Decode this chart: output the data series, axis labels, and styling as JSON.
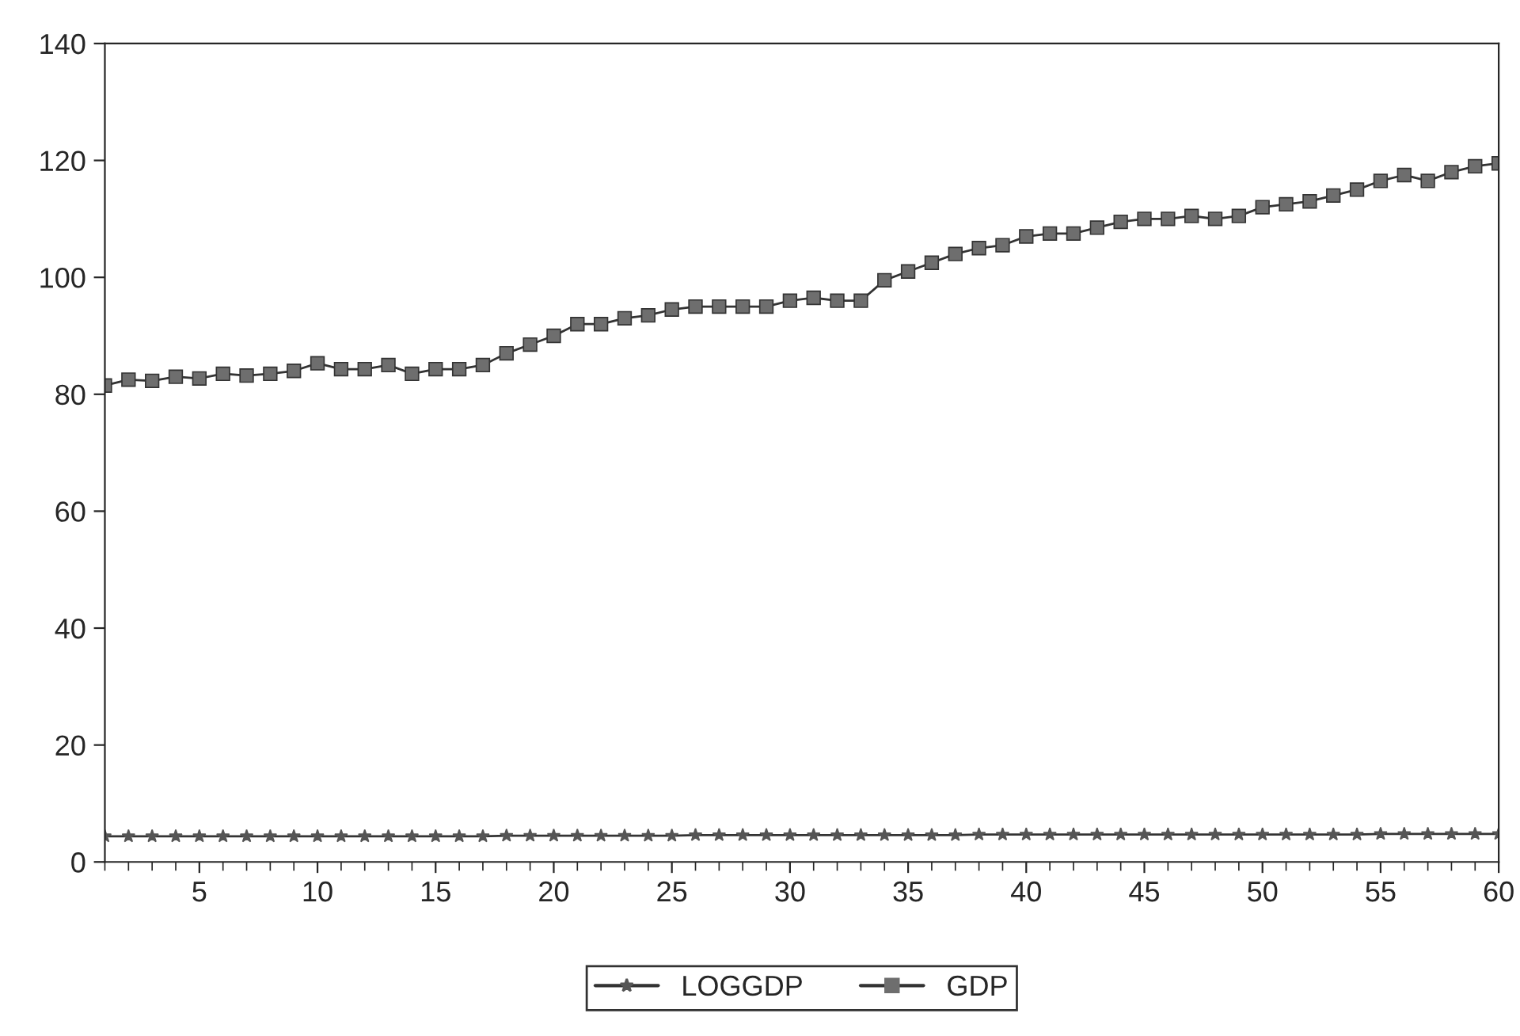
{
  "chart_data": {
    "type": "line",
    "x": [
      1,
      2,
      3,
      4,
      5,
      6,
      7,
      8,
      9,
      10,
      11,
      12,
      13,
      14,
      15,
      16,
      17,
      18,
      19,
      20,
      21,
      22,
      23,
      24,
      25,
      26,
      27,
      28,
      29,
      30,
      31,
      32,
      33,
      34,
      35,
      36,
      37,
      38,
      39,
      40,
      41,
      42,
      43,
      44,
      45,
      46,
      47,
      48,
      49,
      50,
      51,
      52,
      53,
      54,
      55,
      56,
      57,
      58,
      59,
      60
    ],
    "series": [
      {
        "name": "LOGGDP",
        "color": "#555555",
        "marker": "star",
        "values": [
          4.4,
          4.4,
          4.4,
          4.4,
          4.4,
          4.4,
          4.4,
          4.4,
          4.4,
          4.4,
          4.4,
          4.4,
          4.4,
          4.4,
          4.4,
          4.4,
          4.4,
          4.5,
          4.5,
          4.5,
          4.5,
          4.5,
          4.5,
          4.5,
          4.5,
          4.6,
          4.6,
          4.6,
          4.6,
          4.6,
          4.6,
          4.6,
          4.6,
          4.6,
          4.6,
          4.6,
          4.6,
          4.7,
          4.7,
          4.7,
          4.7,
          4.7,
          4.7,
          4.7,
          4.7,
          4.7,
          4.7,
          4.7,
          4.7,
          4.7,
          4.7,
          4.7,
          4.7,
          4.7,
          4.8,
          4.8,
          4.8,
          4.8,
          4.8,
          4.8
        ]
      },
      {
        "name": "GDP",
        "color": "#6e6e6e",
        "marker": "square",
        "values": [
          81.5,
          82.5,
          82.3,
          83,
          82.7,
          83.5,
          83.2,
          83.5,
          84,
          85.3,
          84.3,
          84.3,
          85,
          83.5,
          84.3,
          84.3,
          85,
          87,
          88.5,
          90,
          92,
          92,
          93,
          93.5,
          94.5,
          95,
          95,
          95,
          95,
          96,
          96.5,
          96,
          96,
          99.5,
          101,
          102.5,
          104,
          105,
          105.5,
          107,
          107.5,
          107.5,
          108.5,
          109.5,
          110,
          110,
          110.5,
          110,
          110.5,
          112,
          112.5,
          113,
          114,
          115,
          116.5,
          117.5,
          116.5,
          118,
          119,
          119.5
        ]
      }
    ],
    "xlim": [
      1,
      60
    ],
    "xticks": [
      5,
      10,
      15,
      20,
      25,
      30,
      35,
      40,
      45,
      50,
      55,
      60
    ],
    "ylim": [
      0,
      140
    ],
    "yticks": [
      0,
      20,
      40,
      60,
      80,
      100,
      120,
      140
    ],
    "grid": false,
    "legend": "bottom",
    "line_style": "solid"
  }
}
